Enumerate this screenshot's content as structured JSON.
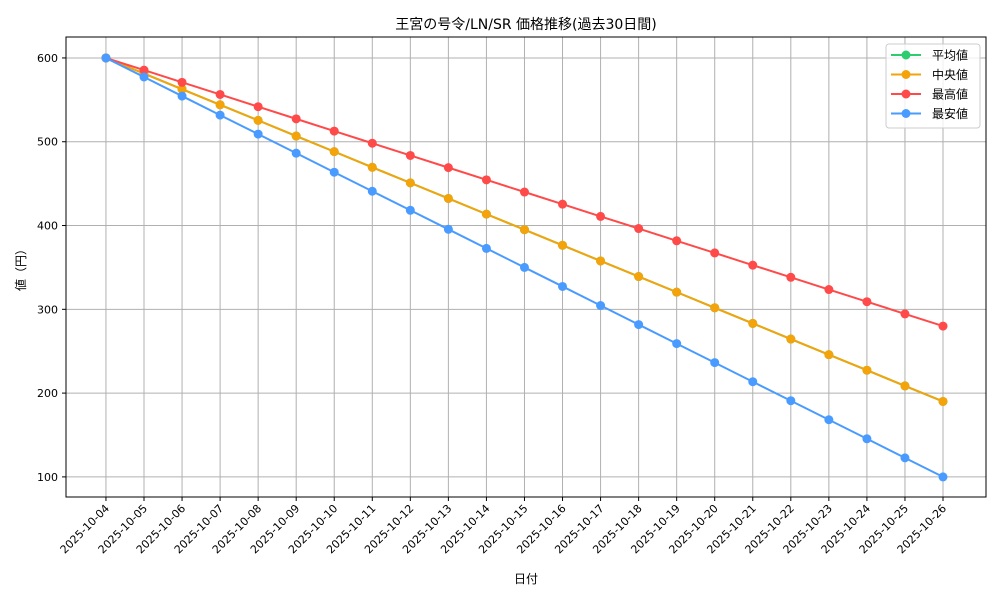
{
  "chart_data": {
    "type": "line",
    "title": "王宮の号令/LN/SR 価格推移(過去30日間)",
    "xlabel": "日付",
    "ylabel": "値（円）",
    "categories": [
      "2025-10-04",
      "2025-10-05",
      "2025-10-06",
      "2025-10-07",
      "2025-10-08",
      "2025-10-09",
      "2025-10-10",
      "2025-10-11",
      "2025-10-12",
      "2025-10-13",
      "2025-10-14",
      "2025-10-15",
      "2025-10-16",
      "2025-10-17",
      "2025-10-18",
      "2025-10-19",
      "2025-10-20",
      "2025-10-21",
      "2025-10-22",
      "2025-10-23",
      "2025-10-24",
      "2025-10-25",
      "2025-10-26"
    ],
    "ylim": [
      76,
      625
    ],
    "yticks": [
      100,
      200,
      300,
      400,
      500,
      600
    ],
    "grid": true,
    "legend_position": "top-right",
    "series": [
      {
        "name": "平均値",
        "color": "#2ecc71",
        "values": [
          600,
          581.4,
          562.7,
          544.1,
          525.5,
          506.8,
          488.2,
          469.5,
          450.9,
          432.3,
          413.6,
          395,
          376.4,
          357.7,
          339.1,
          320.5,
          301.8,
          283.2,
          264.5,
          245.9,
          227.3,
          208.6,
          190
        ]
      },
      {
        "name": "中央値",
        "color": "#f5a30a",
        "values": [
          600,
          581.4,
          562.7,
          544.1,
          525.5,
          506.8,
          488.2,
          469.5,
          450.9,
          432.3,
          413.6,
          395,
          376.4,
          357.7,
          339.1,
          320.5,
          301.8,
          283.2,
          264.5,
          245.9,
          227.3,
          208.6,
          190
        ]
      },
      {
        "name": "最高値",
        "color": "#ff4a4a",
        "values": [
          600,
          585.5,
          570.9,
          556.4,
          541.8,
          527.3,
          512.7,
          498.2,
          483.6,
          469.1,
          454.5,
          440,
          425.5,
          410.9,
          396.4,
          381.8,
          367.3,
          352.7,
          338.2,
          323.6,
          309.1,
          294.5,
          280
        ]
      },
      {
        "name": "最安値",
        "color": "#4a9bff",
        "values": [
          600,
          577.3,
          554.5,
          531.8,
          509.1,
          486.4,
          463.6,
          440.9,
          418.2,
          395.5,
          372.7,
          350,
          327.3,
          304.5,
          281.8,
          259.1,
          236.4,
          213.6,
          190.9,
          168.2,
          145.5,
          122.7,
          100
        ]
      }
    ]
  }
}
